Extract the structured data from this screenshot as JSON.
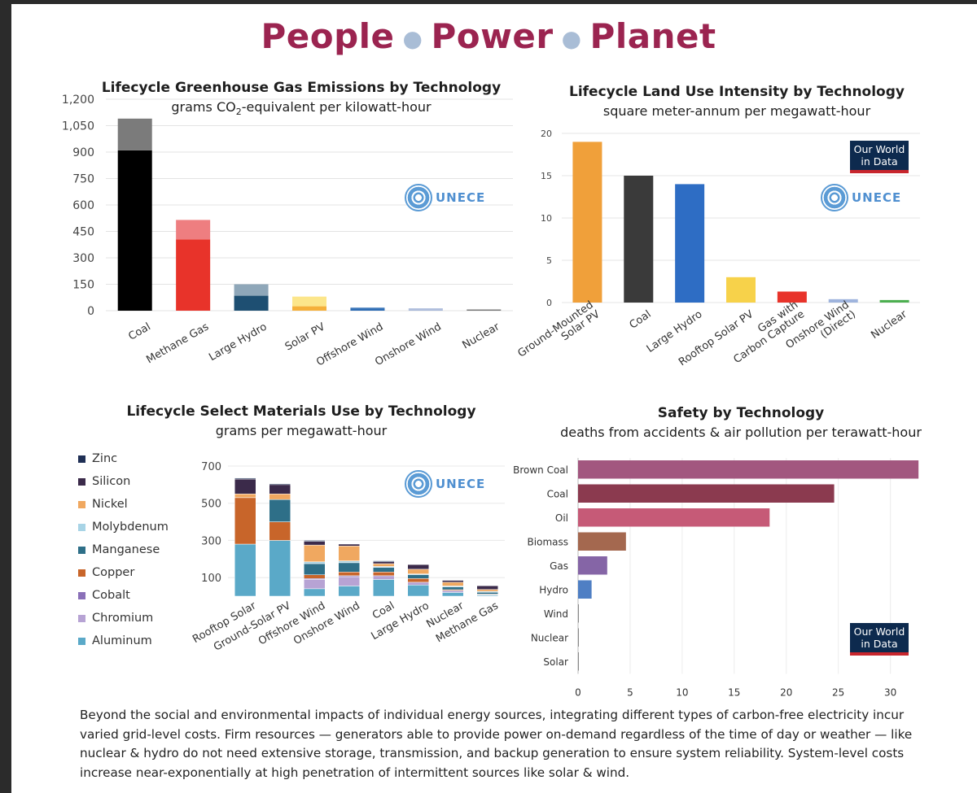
{
  "header": {
    "title_a": "People",
    "title_b": "Power",
    "title_c": "Planet"
  },
  "caption": "Beyond the social and environmental impacts of individual energy sources, integrating different types of carbon-free electricity incur varied grid-level costs. Firm resources — generators able to provide power on-demand regardless of the time of day or weather — like nuclear & hydro do not need extensive storage, transmission, and backup generation to ensure system reliability. System-level costs increase near-exponentially at high penetration of intermittent sources like solar & wind.",
  "badges": {
    "unece": "UNECE",
    "owid_line1": "Our World",
    "owid_line2": "in Data"
  },
  "chart_data": [
    {
      "type": "bar",
      "title": "Lifecycle Greenhouse Gas Emissions by Technology",
      "subtitle_pre": "grams CO",
      "subtitle_sub": "2",
      "subtitle_post": "-equivalent per kilowatt-hour",
      "categories": [
        "Coal",
        "Methane Gas",
        "Large Hydro",
        "Solar PV",
        "Offshore Wind",
        "Onshore Wind",
        "Nuclear"
      ],
      "series": [
        {
          "values": [
            910,
            405,
            85,
            25,
            12,
            8,
            5
          ]
        },
        {
          "values": [
            180,
            110,
            65,
            55,
            5,
            5,
            3
          ]
        }
      ],
      "colors_low": [
        "#000000",
        "#e8332a",
        "#1e4f72",
        "#f5b03a",
        "#2e6db4",
        "#a7b7d9",
        "#777777"
      ],
      "colors_high": [
        "#7b7b7b",
        "#ee7e80",
        "#8fa7b9",
        "#fce68b",
        "#2e6db4",
        "#a7b7d9",
        "#999999"
      ],
      "yticks": [
        "0",
        "150",
        "300",
        "450",
        "600",
        "750",
        "900",
        "1,050",
        "1,200"
      ],
      "ylim": [
        0,
        1200
      ],
      "grid": true
    },
    {
      "type": "bar",
      "title": "Lifecycle Land Use Intensity by Technology",
      "subtitle": "square meter-annum per megawatt-hour",
      "categories": [
        "Ground-Mounted Solar PV",
        "Coal",
        "Large Hydro",
        "Rooftop Solar PV",
        "Gas with Carbon Capture",
        "Onshore Wind (Direct)",
        "Nuclear"
      ],
      "category_lines": [
        [
          "Ground-Mounted",
          "Solar PV"
        ],
        [
          "Coal"
        ],
        [
          "Large Hydro"
        ],
        [
          "Rooftop Solar PV"
        ],
        [
          "Gas with",
          "Carbon Capture"
        ],
        [
          "Onshore Wind",
          "(Direct)"
        ],
        [
          "Nuclear"
        ]
      ],
      "values": [
        19,
        15,
        14,
        3,
        1.3,
        0.4,
        0.3
      ],
      "colors": [
        "#f0a03a",
        "#3a3a3a",
        "#2e6dc4",
        "#f7d24a",
        "#e8332a",
        "#9fb4dd",
        "#4caf50"
      ],
      "yticks": [
        "0",
        "5",
        "10",
        "15",
        "20"
      ],
      "ylim": [
        0,
        20
      ],
      "grid": true
    },
    {
      "type": "bar",
      "stacked": true,
      "title": "Lifecycle Select Materials Use by Technology",
      "subtitle": "grams per megawatt-hour",
      "categories": [
        "Rooftop Solar",
        "Ground-Solar PV",
        "Offshore Wind",
        "Onshore Wind",
        "Coal",
        "Large Hydro",
        "Nuclear",
        "Methane Gas"
      ],
      "legend": [
        "Zinc",
        "Silicon",
        "Nickel",
        "Molybdenum",
        "Manganese",
        "Copper",
        "Cobalt",
        "Chromium",
        "Aluminum"
      ],
      "series": [
        {
          "name": "Aluminum",
          "color": "#5aa9c8",
          "values": [
            280,
            300,
            40,
            55,
            90,
            60,
            20,
            5
          ]
        },
        {
          "name": "Chromium",
          "color": "#b7a3d4",
          "values": [
            0,
            0,
            50,
            50,
            20,
            15,
            10,
            3
          ]
        },
        {
          "name": "Cobalt",
          "color": "#8a70b8",
          "values": [
            0,
            0,
            5,
            5,
            0,
            0,
            0,
            0
          ]
        },
        {
          "name": "Copper",
          "color": "#c8652a",
          "values": [
            250,
            100,
            20,
            20,
            20,
            20,
            5,
            3
          ]
        },
        {
          "name": "Manganese",
          "color": "#2e6f88",
          "values": [
            0,
            120,
            60,
            50,
            25,
            20,
            15,
            10
          ]
        },
        {
          "name": "Molybdenum",
          "color": "#a8d4e6",
          "values": [
            0,
            0,
            10,
            10,
            5,
            5,
            5,
            5
          ]
        },
        {
          "name": "Nickel",
          "color": "#f0a860",
          "values": [
            20,
            30,
            90,
            80,
            15,
            25,
            20,
            10
          ]
        },
        {
          "name": "Silicon",
          "color": "#3b2a4a",
          "values": [
            80,
            50,
            20,
            10,
            10,
            25,
            10,
            20
          ]
        },
        {
          "name": "Zinc",
          "color": "#1f2f55",
          "values": [
            5,
            5,
            5,
            0,
            5,
            0,
            0,
            0
          ]
        }
      ],
      "yticks": [
        "100",
        "300",
        "500",
        "700"
      ],
      "ytick_values": [
        100,
        300,
        500,
        700
      ],
      "ylim": [
        0,
        700
      ],
      "grid": true
    },
    {
      "type": "bar",
      "orientation": "horizontal",
      "title": "Safety by Technology",
      "subtitle": "deaths from accidents & air pollution per terawatt-hour",
      "categories": [
        "Brown Coal",
        "Coal",
        "Oil",
        "Biomass",
        "Gas",
        "Hydro",
        "Wind",
        "Nuclear",
        "Solar"
      ],
      "values": [
        32.7,
        24.6,
        18.4,
        4.6,
        2.8,
        1.3,
        0.04,
        0.03,
        0.02
      ],
      "colors": [
        "#a2577f",
        "#8b3a4f",
        "#c65a77",
        "#a4684f",
        "#8565a6",
        "#4f7fc4",
        "#888888",
        "#888888",
        "#888888"
      ],
      "xticks": [
        "0",
        "5",
        "10",
        "15",
        "20",
        "25",
        "30"
      ],
      "xlim": [
        0,
        33
      ],
      "grid": true
    }
  ]
}
